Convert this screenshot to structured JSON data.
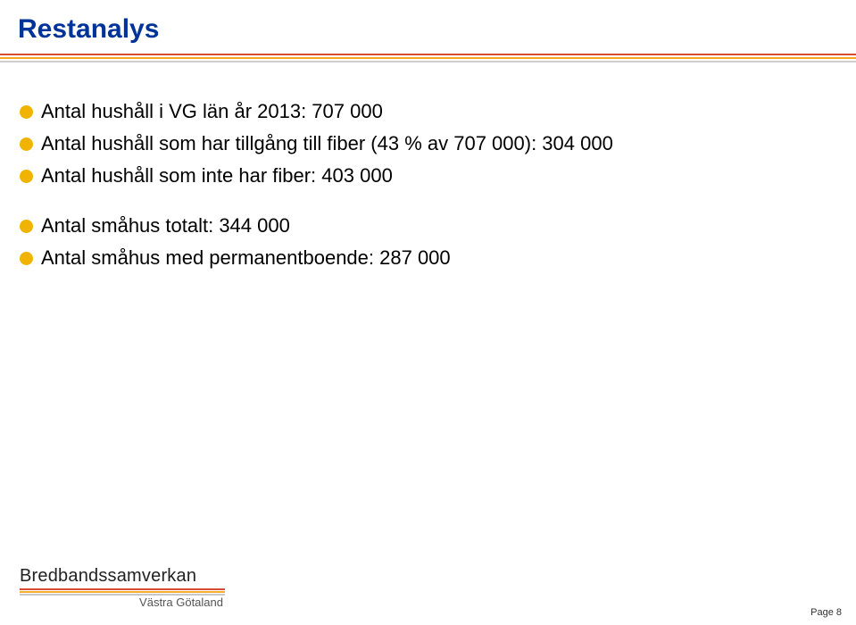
{
  "title": "Restanalys",
  "colors": {
    "title": "#003399",
    "bullet": "#f0b400",
    "top_rule_red": "#d94a32",
    "top_rule_orange": "#f5a623",
    "top_rule_gray": "#cfcfcf",
    "body_text": "#000000"
  },
  "bullets": [
    {
      "text": "Antal hushåll i VG län år 2013: 707 000",
      "gap_before": false
    },
    {
      "text": "Antal hushåll som har tillgång till fiber (43 % av 707 000): 304 000",
      "gap_before": false
    },
    {
      "text": "Antal hushåll som inte har fiber: 403 000",
      "gap_before": false
    },
    {
      "text": "Antal småhus totalt: 344 000",
      "gap_before": true
    },
    {
      "text": "Antal småhus med permanentboende: 287 000",
      "gap_before": false
    }
  ],
  "font": {
    "title_size": 30,
    "body_size": 22
  },
  "logo": {
    "brand": "Bredbandssamverkan",
    "subtitle": "Västra Götaland"
  },
  "page_label": "Page 8"
}
